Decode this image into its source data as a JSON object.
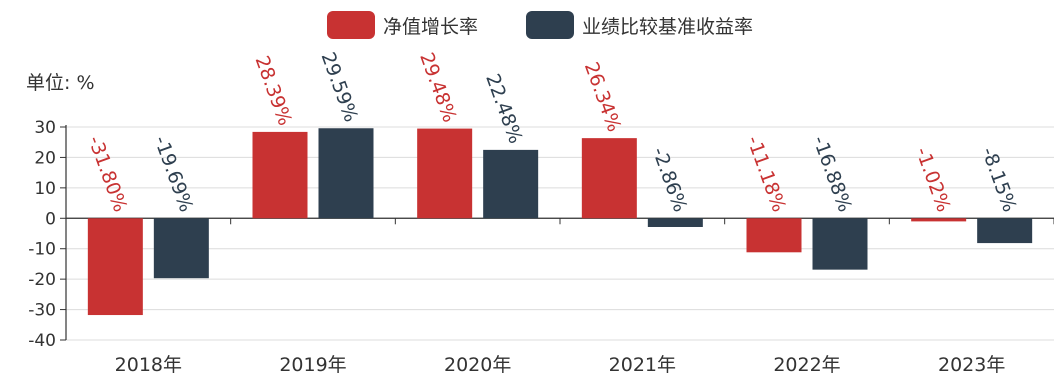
{
  "chart_data": {
    "type": "bar",
    "unit_label": "单位: %",
    "categories": [
      "2018年",
      "2019年",
      "2020年",
      "2021年",
      "2022年",
      "2023年"
    ],
    "series": [
      {
        "name": "净值增长率",
        "color": "#c83232",
        "values": [
          -31.8,
          28.39,
          29.48,
          26.34,
          -11.18,
          -1.02
        ],
        "labels": [
          "-31.80%",
          "28.39%",
          "29.48%",
          "26.34%",
          "-11.18%",
          "-1.02%"
        ]
      },
      {
        "name": "业绩比较基准收益率",
        "color": "#2e3f4f",
        "values": [
          -19.69,
          29.59,
          22.48,
          -2.86,
          -16.88,
          -8.15
        ],
        "labels": [
          "-19.69%",
          "29.59%",
          "22.48%",
          "-2.86%",
          "-16.88%",
          "-8.15%"
        ]
      }
    ],
    "yticks": [
      "30",
      "20",
      "10",
      "0",
      "-10",
      "-20",
      "-30",
      "-40"
    ],
    "ylim": [
      -40,
      30
    ],
    "grid": true,
    "legend_position": "top-center"
  }
}
